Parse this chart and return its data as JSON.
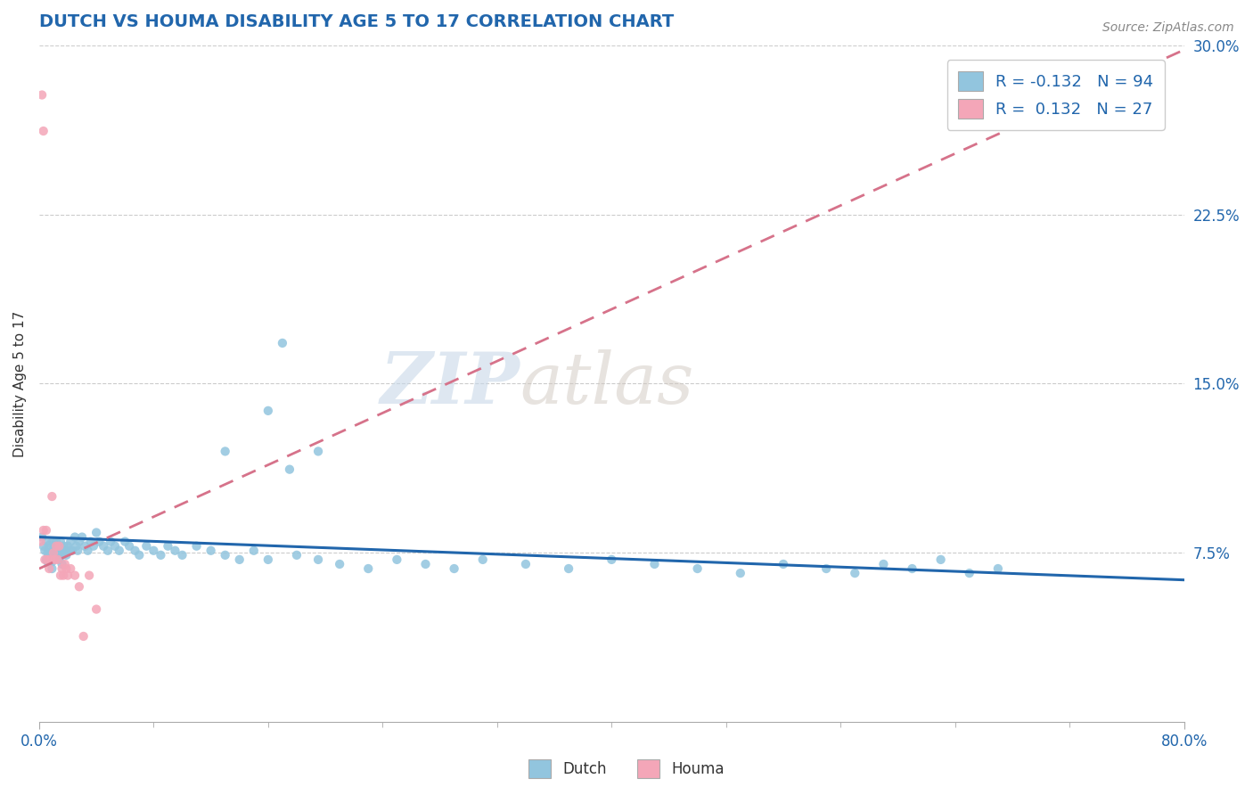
{
  "title": "DUTCH VS HOUMA DISABILITY AGE 5 TO 17 CORRELATION CHART",
  "source_text": "Source: ZipAtlas.com",
  "ylabel": "Disability Age 5 to 17",
  "x_min": 0.0,
  "x_max": 0.8,
  "y_min": 0.0,
  "y_max": 0.3,
  "x_tick_labels": [
    "0.0%",
    "80.0%"
  ],
  "y_ticks": [
    0.075,
    0.15,
    0.225,
    0.3
  ],
  "y_tick_labels": [
    "7.5%",
    "15.0%",
    "22.5%",
    "30.0%"
  ],
  "dutch_color": "#92c5de",
  "houma_color": "#f4a6b8",
  "trend_dutch_color": "#2166ac",
  "trend_houma_color": "#d6728a",
  "watermark_zip": "ZIP",
  "watermark_atlas": "atlas",
  "legend_R_dutch": "-0.132",
  "legend_N_dutch": "94",
  "legend_R_houma": "0.132",
  "legend_N_houma": "27",
  "dutch_x": [
    0.002,
    0.003,
    0.004,
    0.005,
    0.005,
    0.006,
    0.006,
    0.007,
    0.007,
    0.008,
    0.008,
    0.009,
    0.009,
    0.01,
    0.01,
    0.01,
    0.011,
    0.011,
    0.012,
    0.012,
    0.013,
    0.013,
    0.014,
    0.014,
    0.015,
    0.015,
    0.016,
    0.016,
    0.017,
    0.018,
    0.019,
    0.02,
    0.021,
    0.022,
    0.023,
    0.025,
    0.026,
    0.027,
    0.028,
    0.03,
    0.032,
    0.034,
    0.036,
    0.038,
    0.04,
    0.042,
    0.045,
    0.048,
    0.05,
    0.053,
    0.056,
    0.06,
    0.063,
    0.067,
    0.07,
    0.075,
    0.08,
    0.085,
    0.09,
    0.095,
    0.1,
    0.11,
    0.12,
    0.13,
    0.14,
    0.15,
    0.16,
    0.17,
    0.18,
    0.195,
    0.21,
    0.23,
    0.25,
    0.27,
    0.29,
    0.31,
    0.34,
    0.37,
    0.4,
    0.43,
    0.46,
    0.49,
    0.52,
    0.55,
    0.57,
    0.59,
    0.61,
    0.63,
    0.65,
    0.67,
    0.13,
    0.16,
    0.175,
    0.195
  ],
  "dutch_y": [
    0.082,
    0.078,
    0.076,
    0.08,
    0.072,
    0.075,
    0.071,
    0.077,
    0.073,
    0.079,
    0.075,
    0.071,
    0.068,
    0.08,
    0.076,
    0.072,
    0.078,
    0.074,
    0.08,
    0.076,
    0.078,
    0.074,
    0.076,
    0.072,
    0.08,
    0.076,
    0.074,
    0.07,
    0.078,
    0.076,
    0.074,
    0.078,
    0.076,
    0.08,
    0.076,
    0.082,
    0.078,
    0.076,
    0.08,
    0.082,
    0.078,
    0.076,
    0.08,
    0.078,
    0.084,
    0.08,
    0.078,
    0.076,
    0.08,
    0.078,
    0.076,
    0.08,
    0.078,
    0.076,
    0.074,
    0.078,
    0.076,
    0.074,
    0.078,
    0.076,
    0.074,
    0.078,
    0.076,
    0.074,
    0.072,
    0.076,
    0.072,
    0.168,
    0.074,
    0.072,
    0.07,
    0.068,
    0.072,
    0.07,
    0.068,
    0.072,
    0.07,
    0.068,
    0.072,
    0.07,
    0.068,
    0.066,
    0.07,
    0.068,
    0.066,
    0.07,
    0.068,
    0.072,
    0.066,
    0.068,
    0.12,
    0.138,
    0.112,
    0.12
  ],
  "houma_x": [
    0.001,
    0.002,
    0.003,
    0.003,
    0.004,
    0.005,
    0.006,
    0.007,
    0.008,
    0.009,
    0.01,
    0.011,
    0.012,
    0.013,
    0.014,
    0.015,
    0.016,
    0.017,
    0.018,
    0.019,
    0.02,
    0.022,
    0.025,
    0.028,
    0.031,
    0.035,
    0.04
  ],
  "houma_y": [
    0.08,
    0.278,
    0.262,
    0.085,
    0.072,
    0.085,
    0.072,
    0.068,
    0.072,
    0.1,
    0.075,
    0.072,
    0.078,
    0.072,
    0.078,
    0.065,
    0.068,
    0.065,
    0.07,
    0.068,
    0.065,
    0.068,
    0.065,
    0.06,
    0.038,
    0.065,
    0.05
  ],
  "trend_dutch_x0": 0.0,
  "trend_dutch_y0": 0.082,
  "trend_dutch_x1": 0.8,
  "trend_dutch_y1": 0.063,
  "trend_houma_x0": 0.0,
  "trend_houma_y0": 0.068,
  "trend_houma_x1": 0.8,
  "trend_houma_y1": 0.298
}
